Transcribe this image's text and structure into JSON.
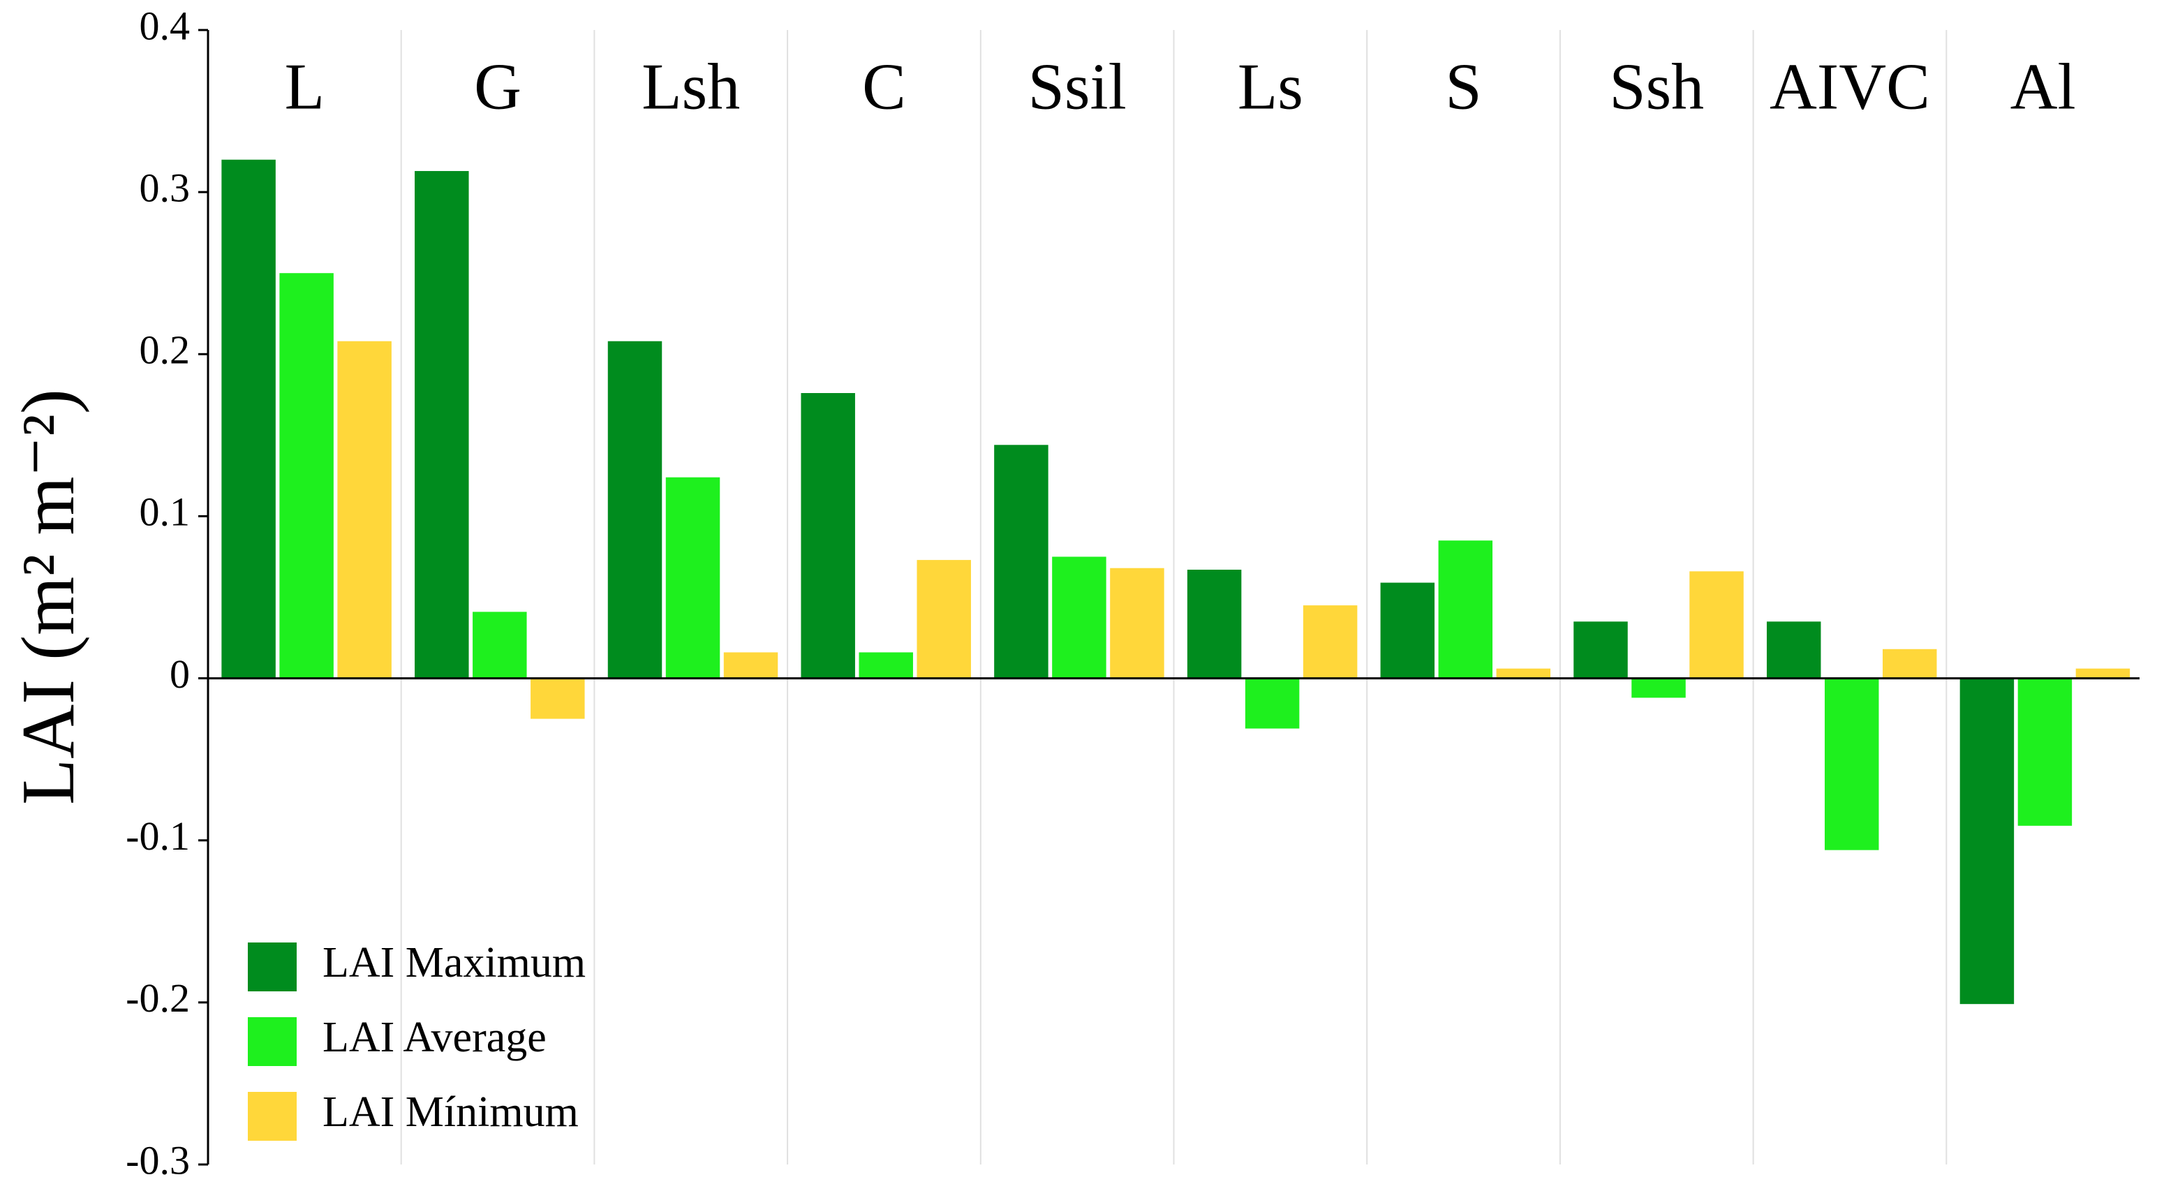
{
  "chart_data": {
    "type": "bar",
    "y_label": "LAI (m² m⁻²)",
    "categories": [
      "L",
      "G",
      "Lsh",
      "C",
      "Ssil",
      "Ls",
      "S",
      "Ssh",
      "AIVC",
      "Al"
    ],
    "series": [
      {
        "name": "LAI Maximum",
        "color": "#008c1e",
        "values": [
          0.32,
          0.313,
          0.208,
          0.176,
          0.144,
          0.067,
          0.059,
          0.035,
          0.035,
          -0.201
        ]
      },
      {
        "name": "LAI Average",
        "color": "#1ef01e",
        "values": [
          0.25,
          0.041,
          0.124,
          0.016,
          0.075,
          -0.031,
          0.085,
          -0.012,
          -0.106,
          -0.091
        ]
      },
      {
        "name": "LAI Mínimum",
        "color": "#ffd73a",
        "values": [
          0.208,
          -0.025,
          0.016,
          0.073,
          0.068,
          0.045,
          0.006,
          0.066,
          0.018,
          0.006
        ]
      }
    ],
    "ylim": [
      -0.3,
      0.4
    ],
    "yticks": [
      -0.3,
      -0.2,
      -0.1,
      0,
      0.1,
      0.2,
      0.3,
      0.4
    ],
    "legend": "lower left"
  }
}
